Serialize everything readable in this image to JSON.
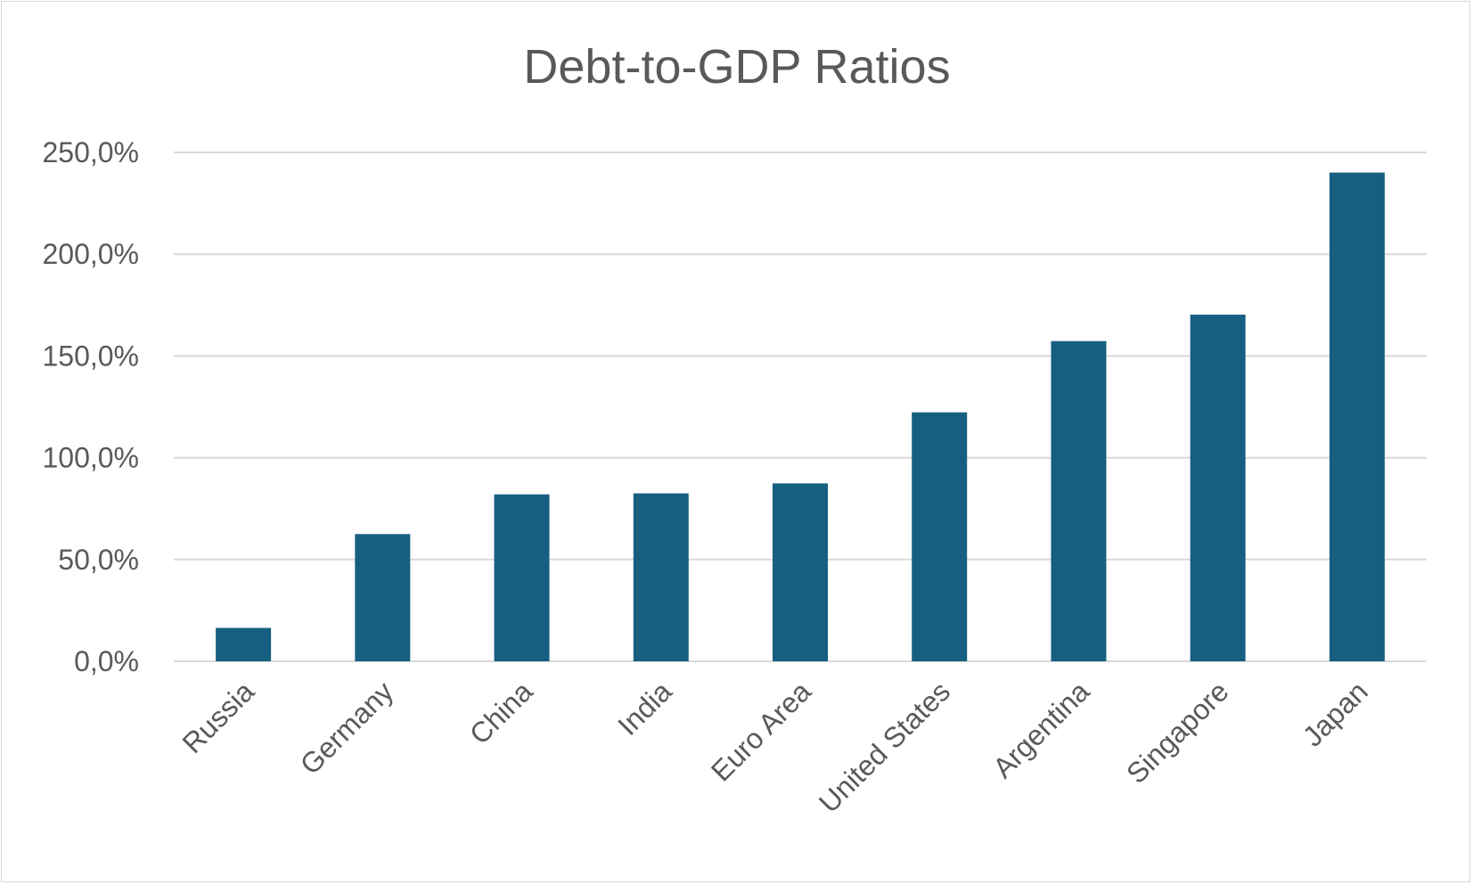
{
  "chart_data": {
    "type": "bar",
    "title": "Debt-to-GDP Ratios",
    "xlabel": "",
    "ylabel": "",
    "ylim": [
      0,
      250
    ],
    "yticks": [
      0,
      50,
      100,
      150,
      200,
      250
    ],
    "ytick_labels": [
      "0,0%",
      "50,0%",
      "100,0%",
      "150,0%",
      "200,0%",
      "250,0%"
    ],
    "grid": true,
    "legend": "none",
    "categories": [
      "Russia",
      "Germany",
      "China",
      "India",
      "Euro Area",
      "United States",
      "Argentina",
      "Singapore",
      "Japan"
    ],
    "series": [
      {
        "name": "Debt-to-GDP",
        "values": [
          16.4,
          62.5,
          82.0,
          82.5,
          87.4,
          122.3,
          157.3,
          170.3,
          240.1
        ],
        "color": "#175f81"
      }
    ]
  }
}
